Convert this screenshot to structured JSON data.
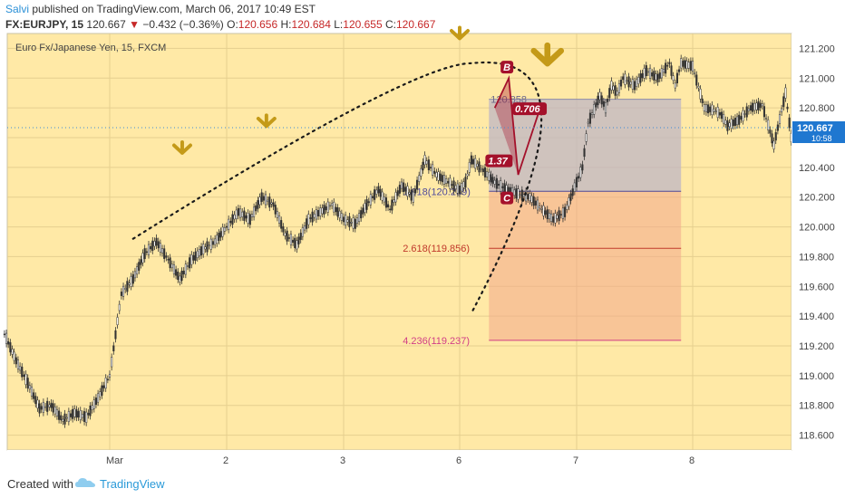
{
  "header": {
    "author": "Salvi",
    "published_text": "published on TradingView.com, March 06, 2017 10:49 EST",
    "symbol": "FX:EURJPY, 15",
    "last": "120.667",
    "change": "−0.432 (−0.36%)",
    "o_label": "O:",
    "o_value": "120.656",
    "h_label": "H:",
    "h_value": "120.684",
    "l_label": "L:",
    "l_value": "120.655",
    "c_label": "C:",
    "c_value": "120.667"
  },
  "footer": {
    "created_text": "Created with",
    "brand": "TradingView"
  },
  "colors": {
    "background": "#ffe9a6",
    "up_candle": "#333333",
    "arrow": "#c49a18",
    "projection_box": "#f2a78a",
    "top_box": "#bfb5c4",
    "pattern": "#a4112b",
    "last_price_tag": "#1f77d0"
  },
  "chart_data": {
    "type": "line",
    "title": "Euro Fx/Japanese Yen, 15, FXCM",
    "x_tick_labels": [
      "Mar",
      "2",
      "3",
      "6",
      "7",
      "8"
    ],
    "y_ticks": [
      "121.200",
      "121.000",
      "120.800",
      "120.600",
      "120.400",
      "120.200",
      "120.000",
      "119.800",
      "119.600",
      "119.400",
      "119.200",
      "119.000",
      "118.800",
      "118.600"
    ],
    "ylim": [
      118.5,
      121.3
    ],
    "last_price": "120.667",
    "last_time": "10:58",
    "series": [
      {
        "x": [
          -0.9,
          -0.8,
          -0.7,
          -0.6,
          -0.5,
          -0.4,
          -0.3,
          -0.2,
          -0.1,
          0.0,
          0.1,
          0.2,
          0.3,
          0.4,
          0.5,
          0.6,
          0.7,
          0.8,
          0.9,
          1.0,
          1.1,
          1.2,
          1.3,
          1.4,
          1.5,
          1.6,
          1.7,
          1.8,
          1.9,
          2.0,
          2.1,
          2.2,
          2.3,
          2.4,
          2.5,
          2.6,
          2.7,
          2.8,
          2.9,
          3.0,
          3.05,
          3.1,
          3.2,
          3.3,
          3.4,
          3.5,
          3.6,
          3.7,
          3.8,
          3.9,
          4.0,
          4.05,
          4.1,
          4.2,
          4.25,
          4.3,
          4.35,
          4.4,
          4.5,
          4.6,
          4.7,
          4.8,
          4.85,
          4.9,
          5.0,
          5.1,
          5.2,
          5.25,
          5.3,
          5.4,
          5.5,
          5.6,
          5.7,
          5.8,
          5.85,
          5.9,
          5.95,
          6.0,
          6.05,
          6.1,
          6.2,
          6.3,
          6.4,
          6.5
        ],
        "values": [
          119.28,
          119.1,
          118.95,
          118.78,
          118.8,
          118.7,
          118.75,
          118.72,
          118.85,
          119.0,
          119.55,
          119.65,
          119.82,
          119.9,
          119.78,
          119.65,
          119.78,
          119.85,
          119.9,
          120.0,
          120.1,
          120.05,
          120.2,
          120.15,
          119.95,
          119.88,
          120.05,
          120.1,
          120.15,
          120.05,
          120.02,
          120.15,
          120.25,
          120.12,
          120.28,
          120.2,
          120.45,
          120.35,
          120.3,
          120.25,
          120.3,
          120.45,
          120.38,
          120.3,
          120.25,
          120.22,
          120.2,
          120.12,
          120.05,
          120.1,
          120.3,
          120.4,
          120.7,
          120.88,
          120.8,
          120.95,
          120.9,
          121.0,
          120.95,
          121.05,
          121.0,
          121.1,
          120.95,
          121.1,
          121.08,
          120.8,
          120.78,
          120.75,
          120.68,
          120.72,
          120.8,
          120.82,
          120.55,
          120.9,
          120.6,
          120.4,
          120.35,
          120.45,
          120.52,
          120.48,
          120.58,
          120.62,
          120.67,
          120.667
        ]
      }
    ],
    "fib_levels": [
      {
        "label": "1.618(120.239)",
        "value": 120.239,
        "color": "#4e4a99"
      },
      {
        "label": "2.618(119.856)",
        "value": 119.856,
        "color": "#c0392b"
      },
      {
        "label": "4.236(119.237)",
        "value": 119.237,
        "color": "#d13e86"
      }
    ],
    "top_label": "120.858",
    "top_value": 120.858,
    "pattern_labels": {
      "b": "B",
      "c": "C",
      "ratio_bc": "0.706",
      "ratio_xa": "1.37"
    }
  }
}
